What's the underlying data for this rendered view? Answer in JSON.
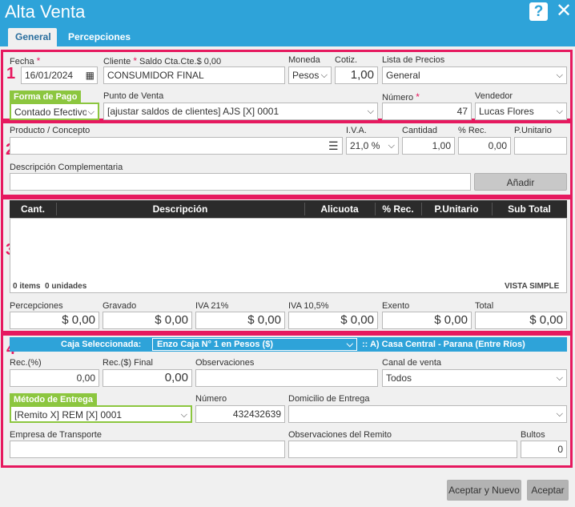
{
  "window": {
    "title": "Alta Venta",
    "help_label": "?",
    "close_label": "✕"
  },
  "tabs": {
    "general": "General",
    "percepciones": "Percepciones"
  },
  "sections": {
    "n1": "1",
    "n2": "2",
    "n3": "3",
    "n4": "4"
  },
  "header": {
    "fecha_label": "Fecha",
    "required_mark": "*",
    "fecha_value": "16/01/2024",
    "cliente_label": "Cliente",
    "saldo_label": "Saldo Cta.Cte.$ 0,00",
    "cliente_value": "CONSUMIDOR FINAL",
    "moneda_label": "Moneda",
    "moneda_value": "Pesos",
    "cotiz_label": "Cotiz.",
    "cotiz_value": "1,00",
    "lista_label": "Lista de Precios",
    "lista_value": "General",
    "forma_pago_label": "Forma de Pago",
    "forma_pago_value": "Contado Efectivo",
    "punto_venta_label": "Punto de Venta",
    "punto_venta_value": "[ajustar saldos de clientes] AJS [X] 0001",
    "numero_label": "Número",
    "numero_value": "47",
    "vendedor_label": "Vendedor",
    "vendedor_value": "Lucas Flores"
  },
  "product": {
    "producto_label": "Producto / Concepto",
    "producto_value": "",
    "iva_label": "I.V.A.",
    "iva_value": "21,0 %",
    "cantidad_label": "Cantidad",
    "cantidad_value": "1,00",
    "rec_label": "% Rec.",
    "rec_value": "0,00",
    "punitario_label": "P.Unitario",
    "punitario_value": "",
    "desc_comp_label": "Descripción Complementaria",
    "desc_comp_value": "",
    "anadir_label": "Añadir"
  },
  "grid": {
    "columns": [
      "Cant.",
      "Descripción",
      "Alicuota",
      "% Rec.",
      "P.Unitario",
      "Sub Total"
    ],
    "footer_items": "0 items  0 unidades",
    "footer_view": "VISTA SIMPLE"
  },
  "totals": [
    {
      "label": "Percepciones",
      "value": "$  0,00"
    },
    {
      "label": "Gravado",
      "value": "$  0,00"
    },
    {
      "label": "IVA 21%",
      "value": "$  0,00"
    },
    {
      "label": "IVA 10,5%",
      "value": "$  0,00"
    },
    {
      "label": "Exento",
      "value": "$  0,00"
    },
    {
      "label": "Total",
      "value": "$  0,00"
    }
  ],
  "caja": {
    "label": "Caja Seleccionada:",
    "value": "Enzo Caja N° 1 en Pesos ($)",
    "sucursal": ":: A) Casa Central - Parana (Entre Ríos)"
  },
  "extra": {
    "rec_pct_label": "Rec.(%)",
    "rec_pct_value": "0,00",
    "rec_final_label": "Rec.($) Final",
    "rec_final_value": "0,00",
    "obs_label": "Observaciones",
    "obs_value": "",
    "canal_label": "Canal de venta",
    "canal_value": "Todos",
    "metodo_label": "Método de Entrega",
    "metodo_value": "[Remito X] REM [X] 0001",
    "numero_label": "Número",
    "numero_value": "432432639",
    "domicilio_label": "Domicilio de Entrega",
    "domicilio_value": "",
    "empresa_label": "Empresa de Transporte",
    "empresa_value": "",
    "obs_remito_label": "Observaciones del Remito",
    "obs_remito_value": "",
    "bultos_label": "Bultos",
    "bultos_value": "0"
  },
  "actions": {
    "aceptar_nuevo": "Aceptar y Nuevo",
    "aceptar": "Aceptar"
  }
}
